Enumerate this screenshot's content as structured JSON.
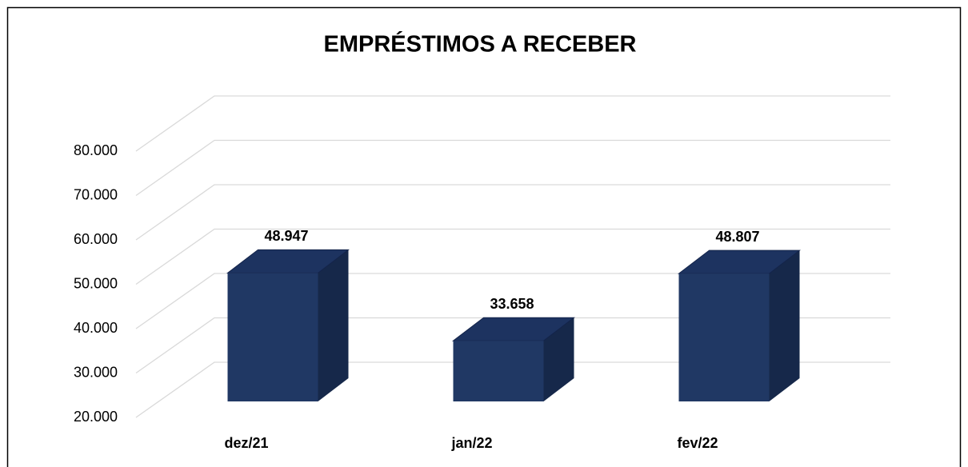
{
  "chart_data": {
    "type": "bar3d",
    "title": "EMPRÉSTIMOS A RECEBER",
    "categories": [
      "dez/21",
      "jan/22",
      "fev/22"
    ],
    "values": [
      48947,
      33658,
      48807
    ],
    "value_labels": [
      "48.947",
      "33.658",
      "48.807"
    ],
    "color": "#203864",
    "ylim": [
      20000,
      80000
    ],
    "yticks": [
      {
        "value": 20000,
        "label": "20.000"
      },
      {
        "value": 30000,
        "label": "30.000"
      },
      {
        "value": 40000,
        "label": "40.000"
      },
      {
        "value": 50000,
        "label": "50.000"
      },
      {
        "value": 60000,
        "label": "60.000"
      },
      {
        "value": 70000,
        "label": "70.000"
      },
      {
        "value": 80000,
        "label": "80.000"
      }
    ],
    "grid": true
  }
}
